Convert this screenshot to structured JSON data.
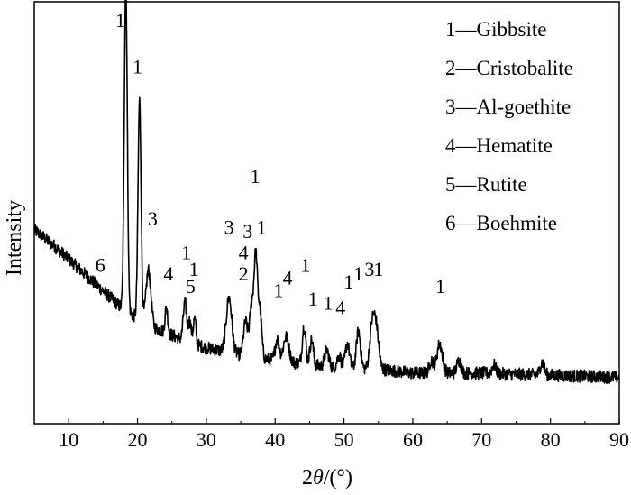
{
  "chart_data": {
    "type": "line",
    "xlabel_prefix": "2",
    "xlabel_theta": "θ",
    "xlabel_suffix": "/(°)",
    "ylabel": "Intensity",
    "xlim": [
      5,
      90
    ],
    "ylim": [
      0,
      1
    ],
    "x_ticks": [
      "10",
      "20",
      "30",
      "40",
      "50",
      "60",
      "70",
      "80",
      "90"
    ],
    "legend": [
      {
        "num": "1",
        "dash": "—",
        "name": "Gibbsite"
      },
      {
        "num": "2",
        "dash": "—",
        "name": "Cristobalite"
      },
      {
        "num": "3",
        "dash": "—",
        "name": "Al-goethite"
      },
      {
        "num": "4",
        "dash": "—",
        "name": "Hematite"
      },
      {
        "num": "5",
        "dash": "—",
        "name": "Rutite"
      },
      {
        "num": "6",
        "dash": "—",
        "name": "Boehmite"
      }
    ],
    "background": [
      [
        5,
        0.46
      ],
      [
        8,
        0.42
      ],
      [
        10,
        0.39
      ],
      [
        12,
        0.36
      ],
      [
        14,
        0.33
      ],
      [
        16,
        0.3
      ],
      [
        18,
        0.27
      ],
      [
        20,
        0.25
      ],
      [
        22,
        0.23
      ],
      [
        25,
        0.21
      ],
      [
        28,
        0.19
      ],
      [
        30,
        0.18
      ],
      [
        33,
        0.17
      ],
      [
        36,
        0.16
      ],
      [
        40,
        0.15
      ],
      [
        45,
        0.14
      ],
      [
        50,
        0.13
      ],
      [
        55,
        0.13
      ],
      [
        60,
        0.12
      ],
      [
        70,
        0.12
      ],
      [
        80,
        0.115
      ],
      [
        90,
        0.11
      ]
    ],
    "peaks": [
      {
        "x": 18.3,
        "h": 0.78,
        "w": 0.22
      },
      {
        "x": 20.3,
        "h": 0.52,
        "w": 0.22
      },
      {
        "x": 21.6,
        "h": 0.13,
        "w": 0.35
      },
      {
        "x": 24.2,
        "h": 0.06,
        "w": 0.2
      },
      {
        "x": 26.9,
        "h": 0.09,
        "w": 0.25
      },
      {
        "x": 27.6,
        "h": 0.05,
        "w": 0.2
      },
      {
        "x": 28.3,
        "h": 0.06,
        "w": 0.2
      },
      {
        "x": 33.3,
        "h": 0.13,
        "w": 0.4
      },
      {
        "x": 35.7,
        "h": 0.08,
        "w": 0.3
      },
      {
        "x": 36.6,
        "h": 0.12,
        "w": 0.3
      },
      {
        "x": 37.2,
        "h": 0.23,
        "w": 0.25
      },
      {
        "x": 37.8,
        "h": 0.11,
        "w": 0.25
      },
      {
        "x": 40.3,
        "h": 0.05,
        "w": 0.3
      },
      {
        "x": 41.6,
        "h": 0.06,
        "w": 0.4
      },
      {
        "x": 44.2,
        "h": 0.09,
        "w": 0.25
      },
      {
        "x": 45.3,
        "h": 0.06,
        "w": 0.25
      },
      {
        "x": 47.5,
        "h": 0.04,
        "w": 0.3
      },
      {
        "x": 49.3,
        "h": 0.03,
        "w": 0.3
      },
      {
        "x": 50.5,
        "h": 0.06,
        "w": 0.3
      },
      {
        "x": 52.1,
        "h": 0.09,
        "w": 0.3
      },
      {
        "x": 54.1,
        "h": 0.1,
        "w": 0.35
      },
      {
        "x": 54.7,
        "h": 0.09,
        "w": 0.35
      },
      {
        "x": 62.7,
        "h": 0.03,
        "w": 0.3
      },
      {
        "x": 63.9,
        "h": 0.07,
        "w": 0.4
      },
      {
        "x": 66.7,
        "h": 0.03,
        "w": 0.3
      },
      {
        "x": 71.8,
        "h": 0.02,
        "w": 0.3
      },
      {
        "x": 78.8,
        "h": 0.03,
        "w": 0.3
      }
    ],
    "peak_labels": [
      {
        "text": "1",
        "x": 17.5,
        "y": 0.94
      },
      {
        "text": "1",
        "x": 20.0,
        "y": 0.83
      },
      {
        "text": "3",
        "x": 22.2,
        "y": 0.47
      },
      {
        "text": "6",
        "x": 14.6,
        "y": 0.36
      },
      {
        "text": "4",
        "x": 24.5,
        "y": 0.34
      },
      {
        "text": "1",
        "x": 27.1,
        "y": 0.39
      },
      {
        "text": "1",
        "x": 28.2,
        "y": 0.35
      },
      {
        "text": "5",
        "x": 27.7,
        "y": 0.31
      },
      {
        "text": "3",
        "x": 33.3,
        "y": 0.45
      },
      {
        "text": "3",
        "x": 36.0,
        "y": 0.44
      },
      {
        "text": "4",
        "x": 35.4,
        "y": 0.39
      },
      {
        "text": "2",
        "x": 35.4,
        "y": 0.34
      },
      {
        "text": "1",
        "x": 37.1,
        "y": 0.57
      },
      {
        "text": "1",
        "x": 38.0,
        "y": 0.45
      },
      {
        "text": "1",
        "x": 40.5,
        "y": 0.3
      },
      {
        "text": "4",
        "x": 41.8,
        "y": 0.33
      },
      {
        "text": "1",
        "x": 44.4,
        "y": 0.36
      },
      {
        "text": "1",
        "x": 45.5,
        "y": 0.28
      },
      {
        "text": "1",
        "x": 47.7,
        "y": 0.27
      },
      {
        "text": "4",
        "x": 49.5,
        "y": 0.26
      },
      {
        "text": "1",
        "x": 50.7,
        "y": 0.32
      },
      {
        "text": "1",
        "x": 52.1,
        "y": 0.34
      },
      {
        "text": "3",
        "x": 53.7,
        "y": 0.35
      },
      {
        "text": "1",
        "x": 55.0,
        "y": 0.35
      },
      {
        "text": "1",
        "x": 64.0,
        "y": 0.31
      }
    ]
  }
}
